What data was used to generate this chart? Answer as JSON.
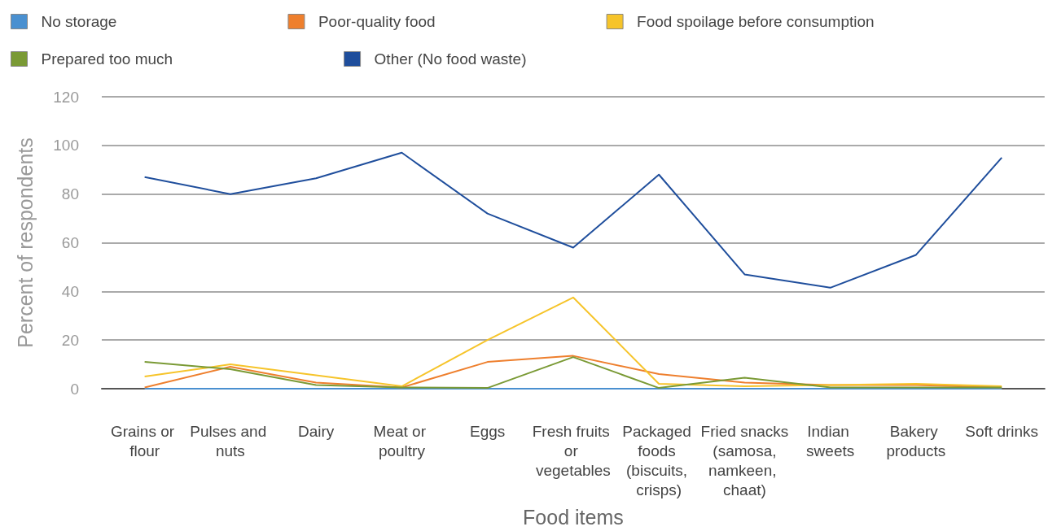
{
  "chart_data": {
    "type": "line",
    "xlabel": "Food items",
    "ylabel": "Percent of respondents",
    "categories": [
      "Grains or flour",
      "Pulses and nuts",
      "Dairy",
      "Meat or poultry",
      "Eggs",
      "Fresh fruits or vegetables",
      "Packaged foods (biscuits, crisps)",
      "Fried snacks (samosa, namkeen, chaat)",
      "Indian sweets",
      "Bakery products",
      "Soft drinks"
    ],
    "series": [
      {
        "name": "No storage",
        "color": "#4a90d0",
        "values": [
          0,
          0,
          0,
          0,
          0,
          0,
          0,
          0,
          0,
          0,
          0
        ]
      },
      {
        "name": "Poor-quality food",
        "color": "#ee7f2d",
        "values": [
          0.5,
          9,
          2.5,
          0.5,
          11,
          13.5,
          6,
          2.5,
          1.5,
          1.5,
          0.5
        ]
      },
      {
        "name": "Food spoilage before consumption",
        "color": "#f6c42a",
        "values": [
          5,
          10,
          5.5,
          1,
          20,
          37.5,
          2,
          1,
          1.5,
          2,
          1
        ]
      },
      {
        "name": "Prepared too much",
        "color": "#7a9a35",
        "values": [
          11,
          8,
          1.5,
          0.5,
          0.3,
          13,
          0.3,
          4.5,
          0.5,
          0.5,
          0.5
        ]
      },
      {
        "name": "Other (No food waste)",
        "color": "#1f4e9c",
        "values": [
          87,
          80,
          86.5,
          97,
          72,
          58,
          88,
          47,
          41.5,
          55,
          95
        ]
      }
    ],
    "ylim": [
      0,
      120
    ],
    "yticks": [
      0,
      20,
      40,
      60,
      80,
      100,
      120
    ],
    "grid": "y",
    "legend": "top",
    "marker": "none",
    "line_style": "solid"
  }
}
